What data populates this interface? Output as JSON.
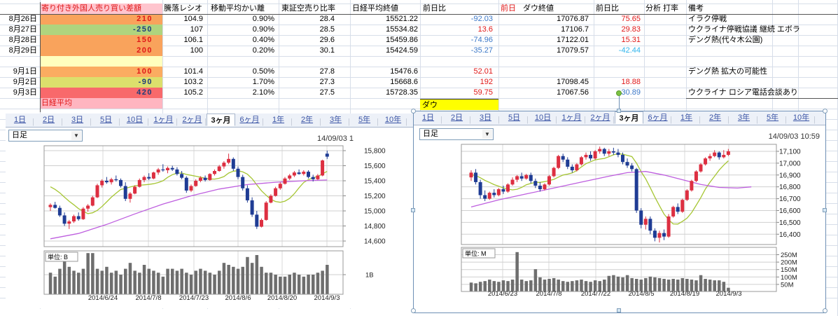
{
  "sheet": {
    "header": {
      "sashigaku": "寄り付き外国人売り買い差額",
      "ratio": "騰落レシオ",
      "kairi": "移動平均かい離",
      "karauri": "東証空売り比率",
      "nikkei_close": "日経平均終値",
      "diff": "前日比",
      "zenjitsu": "前日",
      "dow_close": "ダウ終値",
      "dow_diff": "前日比",
      "bunseki": "分析  打率",
      "biko": "備考"
    },
    "rows": [
      {
        "date": "8月26日",
        "sashigaku": "210",
        "sg_bg": "#F9A35C",
        "sg_cls": "num-pos",
        "ratio": "104.9",
        "kairi": "0.90%",
        "karauri": "28.4",
        "close": "15521.22",
        "diff": "-92.03",
        "diff_cls": "diff-blue",
        "dow": "17076.87",
        "dowdiff": "75.65",
        "dowdiff_cls": "diff-red",
        "biko": "イラク停戦"
      },
      {
        "date": "8月27日",
        "sashigaku": "-250",
        "sg_bg": "#AFD47E",
        "sg_cls": "num-neg",
        "ratio": "107",
        "kairi": "0.90%",
        "karauri": "28.5",
        "close": "15534.82",
        "diff": "13.6",
        "diff_cls": "diff-red",
        "dow": "17106.7",
        "dowdiff": "29.83",
        "dowdiff_cls": "diff-red",
        "biko": "ウクライナ停戦協議 継続  エボラ"
      },
      {
        "date": "8月28日",
        "sashigaku": "150",
        "sg_bg": "#F9A35C",
        "sg_cls": "num-pos",
        "ratio": "106.1",
        "kairi": "0.40%",
        "karauri": "29.6",
        "close": "15459.86",
        "diff": "-74.96",
        "diff_cls": "diff-blue",
        "dow": "17122.01",
        "dowdiff": "15.31",
        "dowdiff_cls": "diff-red",
        "biko": "デング熱(代々木公園)"
      },
      {
        "date": "8月29日",
        "sashigaku": "200",
        "sg_bg": "#F9A35C",
        "sg_cls": "num-pos",
        "ratio": "100",
        "kairi": "0.20%",
        "karauri": "30.1",
        "close": "15424.59",
        "diff": "-35.27",
        "diff_cls": "diff-blue",
        "dow": "17079.57",
        "dowdiff": "-42.44",
        "dowdiff_cls": "diff-cyan",
        "biko": ""
      },
      {
        "date": "",
        "sashigaku": "",
        "sg_bg": "#FFFFBE",
        "sg_cls": "",
        "ratio": "",
        "kairi": "",
        "karauri": "",
        "close": "",
        "diff": "",
        "diff_cls": "",
        "dow": "",
        "dowdiff": "",
        "dowdiff_cls": "",
        "biko": ""
      },
      {
        "date": "9月1日",
        "sashigaku": "100",
        "sg_bg": "#FBAC61",
        "sg_cls": "num-pos",
        "ratio": "101.4",
        "kairi": "0.50%",
        "karauri": "27.8",
        "close": "15476.6",
        "diff": "52.01",
        "diff_cls": "diff-red",
        "dow": "",
        "dowdiff": "",
        "dowdiff_cls": "",
        "biko": "デング熱  拡大の可能性"
      },
      {
        "date": "9月2日",
        "sashigaku": "-90",
        "sg_bg": "#DCDF6C",
        "sg_cls": "num-neg",
        "ratio": "103.2",
        "kairi": "1.70%",
        "karauri": "27.3",
        "close": "15668.6",
        "diff": "192",
        "diff_cls": "diff-red",
        "dow": "17098.45",
        "dowdiff": "18.88",
        "dowdiff_cls": "diff-red",
        "biko": ""
      },
      {
        "date": "9月3日",
        "sashigaku": "420",
        "sg_bg": "#F8696B",
        "sg_cls": "num-neg",
        "ratio": "105.2",
        "kairi": "2.10%",
        "karauri": "27.5",
        "close": "15728.35",
        "diff": "59.75",
        "diff_cls": "diff-red",
        "dow": "17067.56",
        "dowdiff": "-30.89",
        "dowdiff_cls": "diff-blue",
        "biko": "ウクライナ  ロシア電話会談あり"
      }
    ],
    "nikkei_row_label": "日経平均",
    "dow_row_label": "ダウ"
  },
  "period_tabs": {
    "items": [
      "1日",
      "2日",
      "3日",
      "5日",
      "10日",
      "1ヶ月",
      "2ヶ月",
      "3ヶ月",
      "6ヶ月",
      "1年",
      "2年",
      "3年",
      "5年",
      "10年"
    ],
    "active": "3ヶ月"
  },
  "colors": {
    "candle_up": "#DD2F41",
    "candle_down": "#1F3C94",
    "ma_short": "#A6C634",
    "ma_long": "#BE5FDF",
    "volume_bar": "#6E6E6E",
    "grid": "#D7DEE9",
    "tab_link": "#3A54A5",
    "dow_label_bg": "#FFFF00",
    "nikkei_label_bg": "#FFB5C0"
  },
  "chart_data": [
    {
      "id": "nikkei",
      "type": "candlestick",
      "title": "日経平均",
      "interval_label": "日足",
      "timestamp": "14/09/03 1",
      "unit_label": "単位: B",
      "y_ticks": [
        "15,800",
        "15,600",
        "15,400",
        "15,200",
        "15,000",
        "14,800",
        "14,600"
      ],
      "y_tick_values": [
        15800,
        15600,
        15400,
        15200,
        15000,
        14800,
        14600
      ],
      "x_labels": [
        "2014/6/24",
        "2014/7/8",
        "2014/7/23",
        "2014/8/6",
        "2014/8/20",
        "2014/9/3"
      ],
      "volume_ticks": [
        {
          "label": "1B",
          "value": 1.0
        }
      ],
      "ylim": [
        14526,
        15865
      ],
      "candles": [
        [
          15050,
          15100,
          15000,
          15080
        ],
        [
          15080,
          15120,
          15030,
          15040
        ],
        [
          15040,
          15070,
          14920,
          14940
        ],
        [
          14940,
          14980,
          14800,
          14830
        ],
        [
          14830,
          14880,
          14760,
          14860
        ],
        [
          14860,
          14950,
          14840,
          14930
        ],
        [
          14930,
          14980,
          14870,
          14890
        ],
        [
          14890,
          15050,
          14880,
          15030
        ],
        [
          15030,
          15090,
          14990,
          15070
        ],
        [
          15070,
          15200,
          15060,
          15180
        ],
        [
          15180,
          15360,
          15170,
          15340
        ],
        [
          15340,
          15420,
          15310,
          15400
        ],
        [
          15400,
          15450,
          15360,
          15380
        ],
        [
          15380,
          15440,
          15350,
          15420
        ],
        [
          15420,
          15470,
          15390,
          15410
        ],
        [
          15410,
          15430,
          15310,
          15330
        ],
        [
          15330,
          15380,
          15130,
          15160
        ],
        [
          15160,
          15250,
          15110,
          15230
        ],
        [
          15230,
          15340,
          15220,
          15320
        ],
        [
          15320,
          15430,
          15310,
          15410
        ],
        [
          15410,
          15470,
          15380,
          15450
        ],
        [
          15450,
          15500,
          15410,
          15430
        ],
        [
          15430,
          15520,
          15420,
          15510
        ],
        [
          15510,
          15570,
          15480,
          15550
        ],
        [
          15550,
          15620,
          15520,
          15540
        ],
        [
          15540,
          15590,
          15500,
          15570
        ],
        [
          15570,
          15600,
          15530,
          15550
        ],
        [
          15550,
          15580,
          15470,
          15490
        ],
        [
          15490,
          15530,
          15420,
          15440
        ],
        [
          15440,
          15460,
          15240,
          15270
        ],
        [
          15270,
          15350,
          15250,
          15330
        ],
        [
          15330,
          15420,
          15320,
          15400
        ],
        [
          15400,
          15460,
          15380,
          15440
        ],
        [
          15440,
          15470,
          15390,
          15410
        ],
        [
          15410,
          15500,
          15400,
          15490
        ],
        [
          15490,
          15550,
          15470,
          15530
        ],
        [
          15530,
          15610,
          15520,
          15590
        ],
        [
          15590,
          15660,
          15560,
          15640
        ],
        [
          15640,
          15760,
          15620,
          15690
        ],
        [
          15690,
          15710,
          15530,
          15560
        ],
        [
          15560,
          15590,
          15420,
          15450
        ],
        [
          15450,
          15480,
          15270,
          15300
        ],
        [
          15300,
          15340,
          15110,
          15140
        ],
        [
          15140,
          15180,
          14920,
          14950
        ],
        [
          14950,
          15000,
          14760,
          14790
        ],
        [
          14790,
          14900,
          14780,
          14880
        ],
        [
          14880,
          15130,
          14870,
          15110
        ],
        [
          15110,
          15220,
          15100,
          15200
        ],
        [
          15200,
          15320,
          15190,
          15300
        ],
        [
          15300,
          15380,
          15280,
          15360
        ],
        [
          15360,
          15450,
          15350,
          15430
        ],
        [
          15430,
          15490,
          15410,
          15470
        ],
        [
          15470,
          15530,
          15450,
          15510
        ],
        [
          15510,
          15550,
          15480,
          15490
        ],
        [
          15490,
          15540,
          15470,
          15520
        ],
        [
          15520,
          15540,
          15430,
          15450
        ],
        [
          15450,
          15480,
          15390,
          15420
        ],
        [
          15420,
          15490,
          15410,
          15470
        ],
        [
          15470,
          15680,
          15460,
          15670
        ],
        [
          15760,
          15800,
          15690,
          15720
        ]
      ],
      "ma_long_points": [
        [
          0,
          14630
        ],
        [
          6,
          14700
        ],
        [
          12,
          14820
        ],
        [
          18,
          14960
        ],
        [
          24,
          15090
        ],
        [
          30,
          15200
        ],
        [
          36,
          15290
        ],
        [
          42,
          15350
        ],
        [
          48,
          15380
        ],
        [
          54,
          15400
        ],
        [
          59,
          15410
        ]
      ],
      "volumes": [
        1.1,
        0.9,
        1.3,
        1.8,
        1.4,
        1.2,
        1.1,
        1.3,
        2.1,
        2.1,
        1.3,
        1.2,
        1.4,
        1.1,
        1.2,
        1.0,
        1.3,
        1.6,
        1.2,
        1.1,
        1.5,
        1.3,
        1.2,
        1.1,
        0.9,
        1.3,
        1.3,
        1.2,
        1.3,
        1.1,
        1.0,
        1.2,
        1.3,
        1.2,
        1.1,
        1.0,
        1.2,
        1.6,
        1.5,
        1.4,
        1.3,
        1.4,
        1.9,
        1.6,
        2.0,
        1.4,
        1.1,
        1.1,
        1.0,
        0.9,
        0.9,
        1.0,
        1.1,
        1.0,
        0.9,
        1.0,
        1.0,
        1.1,
        1.2,
        1.5
      ]
    },
    {
      "id": "dow",
      "type": "candlestick",
      "title": "ダウ",
      "interval_label": "日足",
      "timestamp": "14/09/03 10:59",
      "unit_label": "単位: M",
      "y_ticks": [
        "17,100",
        "17,000",
        "16,900",
        "16,800",
        "16,700",
        "16,600",
        "16,500",
        "16,400"
      ],
      "y_tick_values": [
        17100,
        17000,
        16900,
        16800,
        16700,
        16600,
        16500,
        16400
      ],
      "x_labels": [
        "2014/6/23",
        "2014/7/8",
        "2014/7/22",
        "2014/8/5",
        "2014/8/19",
        "2014/9/3"
      ],
      "volume_ticks": [
        {
          "label": "250M",
          "value": 250
        },
        {
          "label": "200M",
          "value": 200
        },
        {
          "label": "150M",
          "value": 150
        },
        {
          "label": "100M",
          "value": 100
        },
        {
          "label": "50M",
          "value": 50
        }
      ],
      "ylim": [
        16313,
        17159
      ],
      "candles": [
        [
          16880,
          16940,
          16850,
          16920
        ],
        [
          16920,
          16950,
          16820,
          16840
        ],
        [
          16840,
          16860,
          16700,
          16730
        ],
        [
          16730,
          16770,
          16680,
          16700
        ],
        [
          16700,
          16760,
          16690,
          16750
        ],
        [
          16750,
          16780,
          16710,
          16730
        ],
        [
          16730,
          16790,
          16720,
          16780
        ],
        [
          16780,
          16810,
          16740,
          16760
        ],
        [
          16760,
          16830,
          16750,
          16820
        ],
        [
          16820,
          16880,
          16810,
          16860
        ],
        [
          16860,
          16900,
          16840,
          16890
        ],
        [
          16890,
          16920,
          16850,
          16870
        ],
        [
          16870,
          16910,
          16860,
          16900
        ],
        [
          16900,
          16920,
          16830,
          16850
        ],
        [
          16850,
          16870,
          16790,
          16810
        ],
        [
          16810,
          16840,
          16760,
          16780
        ],
        [
          16780,
          16830,
          16770,
          16820
        ],
        [
          16820,
          16900,
          16810,
          16890
        ],
        [
          16890,
          16970,
          16880,
          16960
        ],
        [
          16960,
          17070,
          16950,
          17060
        ],
        [
          17060,
          17080,
          17010,
          17030
        ],
        [
          17030,
          17050,
          16950,
          16970
        ],
        [
          16970,
          16990,
          16920,
          16940
        ],
        [
          16940,
          17000,
          16930,
          16990
        ],
        [
          16990,
          17060,
          16980,
          17050
        ],
        [
          17050,
          17090,
          17030,
          17070
        ],
        [
          17070,
          17100,
          17020,
          17040
        ],
        [
          17040,
          17110,
          17030,
          17100
        ],
        [
          17100,
          17140,
          17080,
          17120
        ],
        [
          17120,
          17130,
          17060,
          17080
        ],
        [
          17080,
          17120,
          17060,
          17100
        ],
        [
          17100,
          17130,
          17070,
          17090
        ],
        [
          17090,
          17120,
          17050,
          17070
        ],
        [
          17070,
          17090,
          16990,
          17010
        ],
        [
          17010,
          17040,
          16960,
          16980
        ],
        [
          16980,
          17000,
          16930,
          16950
        ],
        [
          16950,
          16960,
          16580,
          16600
        ],
        [
          16600,
          16620,
          16450,
          16480
        ],
        [
          16480,
          16550,
          16440,
          16530
        ],
        [
          16530,
          16550,
          16400,
          16430
        ],
        [
          16430,
          16450,
          16340,
          16370
        ],
        [
          16370,
          16430,
          16330,
          16410
        ],
        [
          16410,
          16440,
          16350,
          16380
        ],
        [
          16380,
          16570,
          16370,
          16550
        ],
        [
          16550,
          16640,
          16540,
          16630
        ],
        [
          16630,
          16660,
          16570,
          16590
        ],
        [
          16590,
          16700,
          16580,
          16690
        ],
        [
          16690,
          16780,
          16680,
          16770
        ],
        [
          16770,
          16860,
          16760,
          16850
        ],
        [
          16850,
          16940,
          16840,
          16930
        ],
        [
          16930,
          17000,
          16920,
          16990
        ],
        [
          16990,
          17050,
          16980,
          17040
        ],
        [
          17040,
          17080,
          17020,
          17060
        ],
        [
          17060,
          17110,
          17050,
          17090
        ],
        [
          17090,
          17100,
          17030,
          17050
        ],
        [
          17050,
          17110,
          17040,
          17070
        ],
        [
          17070,
          17120,
          17060,
          17100
        ]
      ],
      "ma_long_points": [
        [
          0,
          16630
        ],
        [
          6,
          16690
        ],
        [
          12,
          16740
        ],
        [
          18,
          16790
        ],
        [
          24,
          16840
        ],
        [
          30,
          16890
        ],
        [
          34,
          16920
        ],
        [
          38,
          16930
        ],
        [
          42,
          16900
        ],
        [
          46,
          16860
        ],
        [
          50,
          16820
        ],
        [
          54,
          16795
        ],
        [
          58,
          16790
        ],
        [
          61,
          16800
        ]
      ],
      "volumes": [
        60,
        55,
        65,
        70,
        80,
        70,
        65,
        75,
        70,
        80,
        265,
        80,
        70,
        75,
        150,
        95,
        80,
        85,
        90,
        80,
        70,
        65,
        70,
        75,
        80,
        70,
        65,
        75,
        70,
        80,
        105,
        110,
        100,
        95,
        110,
        90,
        85,
        80,
        90,
        100,
        95,
        90,
        85,
        80,
        85,
        80,
        90,
        85,
        80,
        75,
        110,
        85,
        80,
        75,
        75,
        65,
        25
      ]
    }
  ]
}
